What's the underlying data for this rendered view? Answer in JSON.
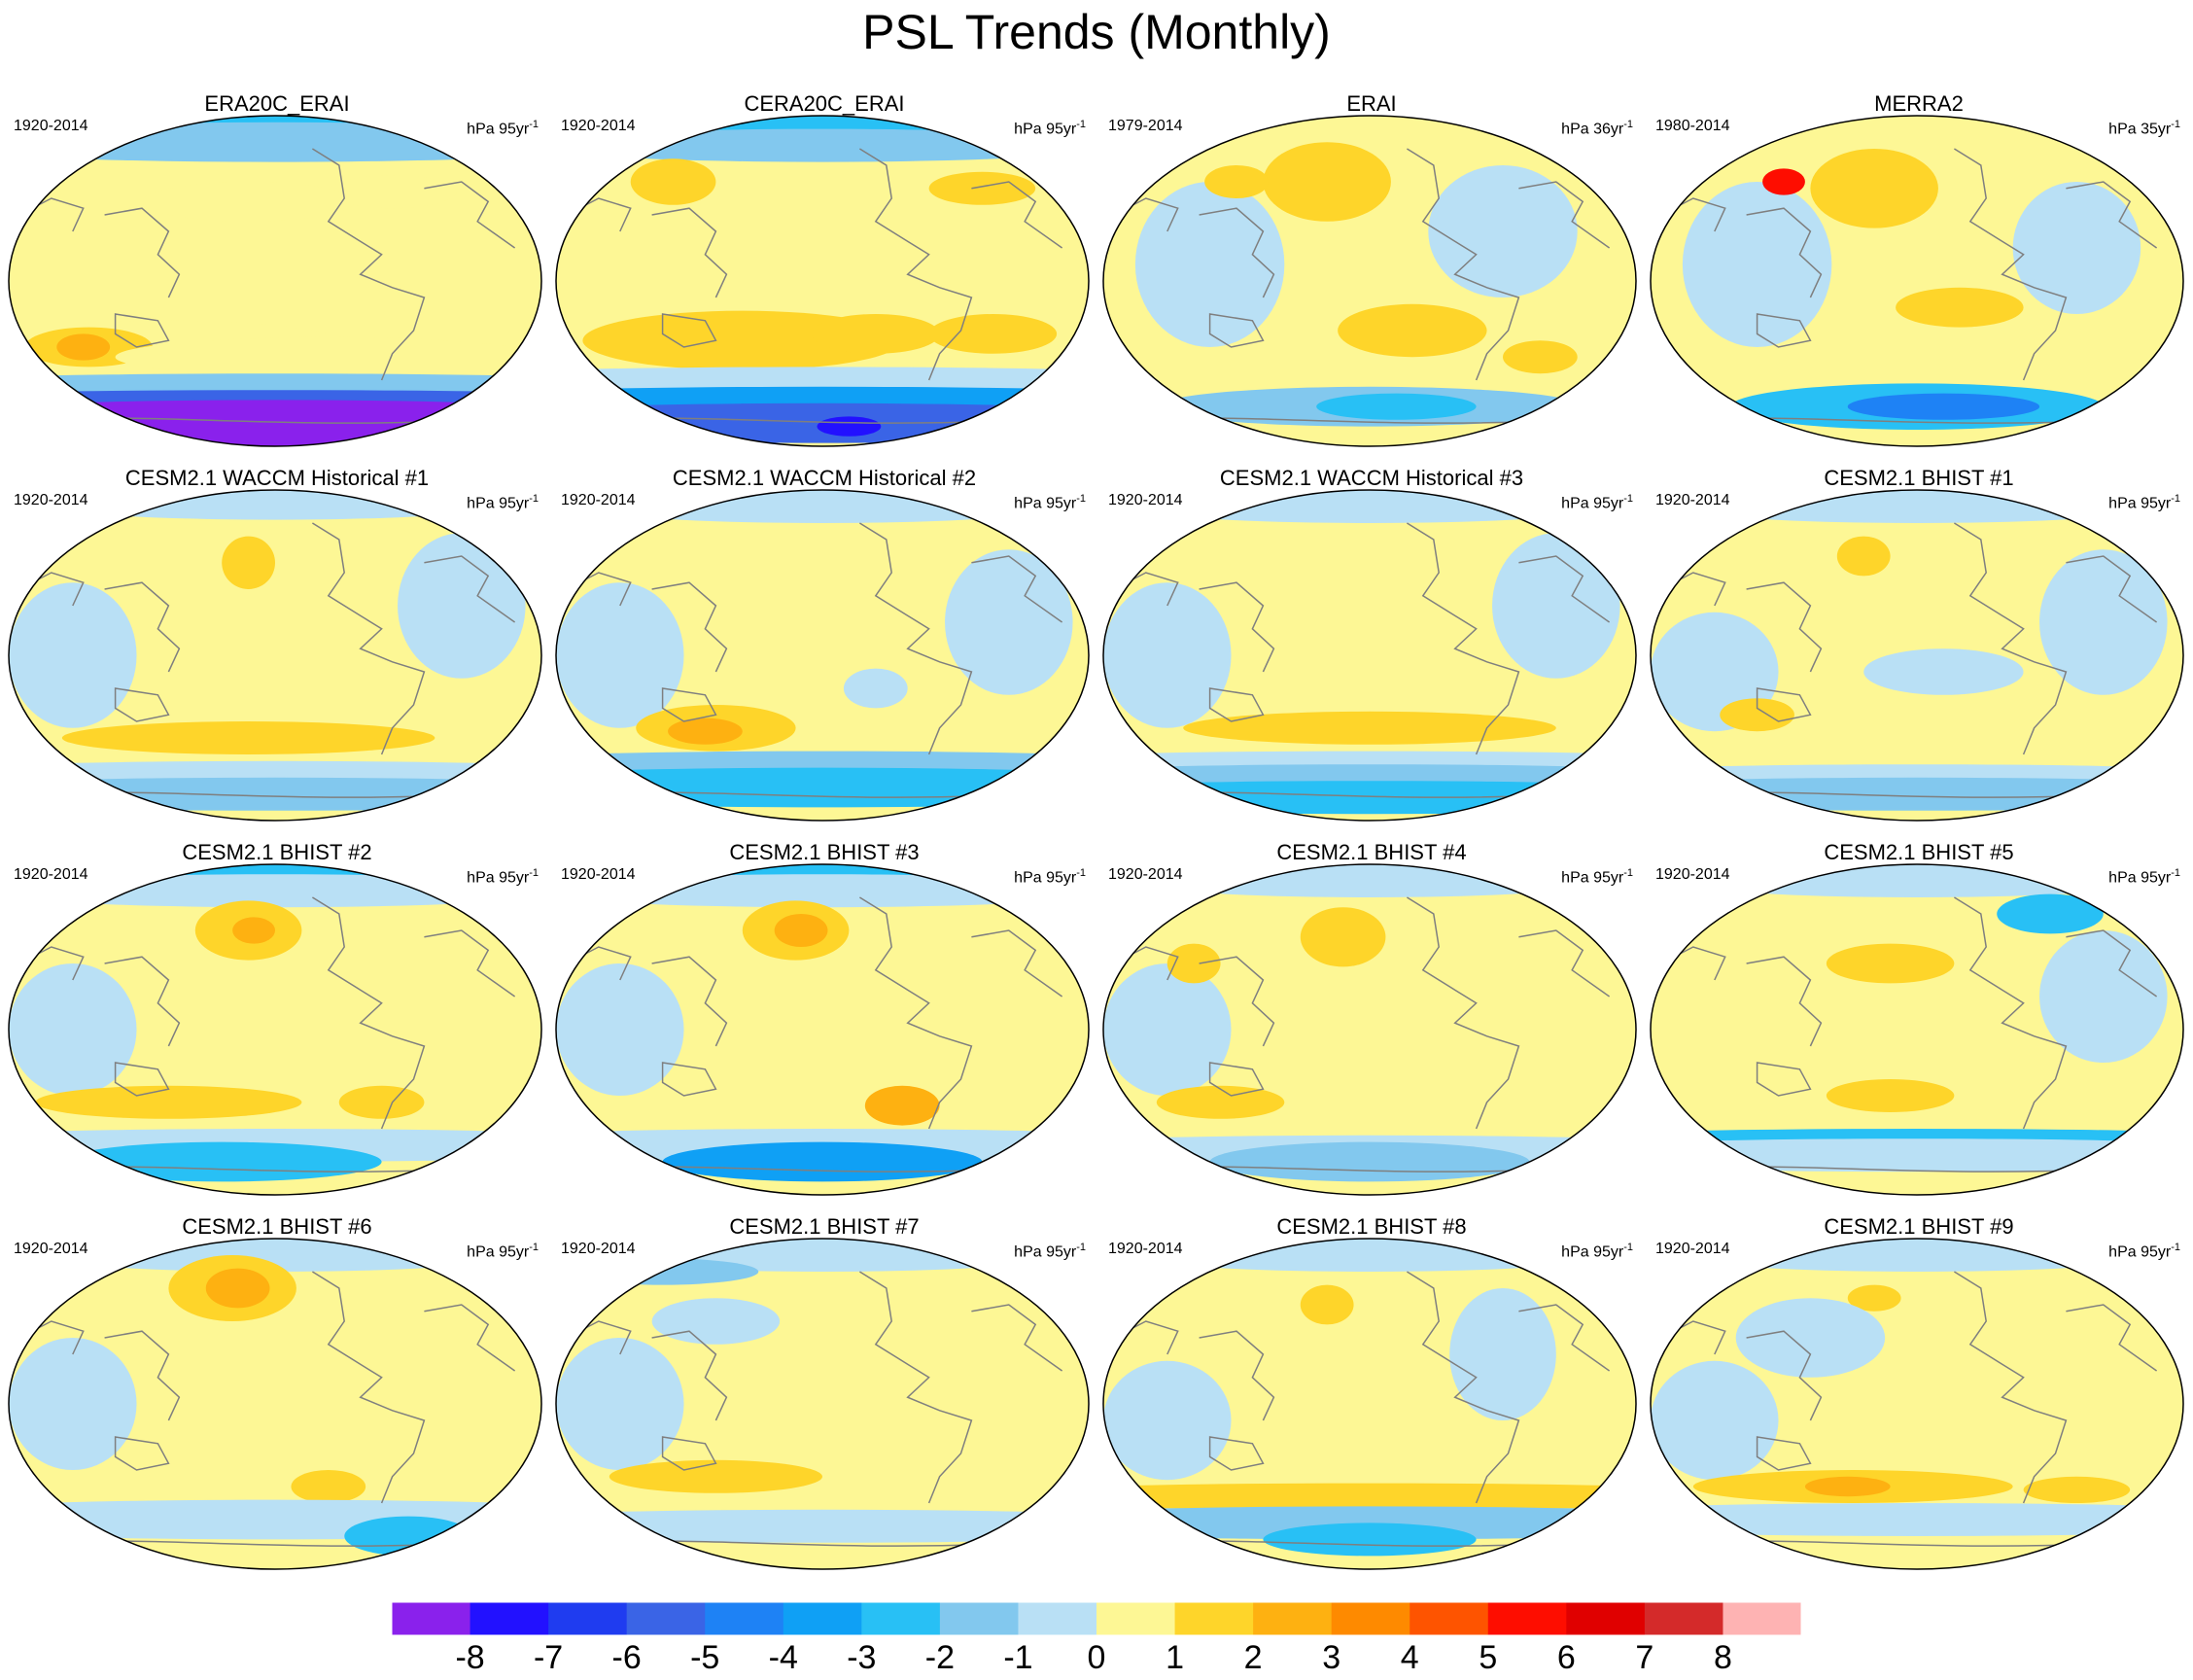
{
  "title": "PSL Trends (Monthly)",
  "colors": {
    "ocean_outline": "#000000",
    "coast": "#7f7f7f"
  },
  "chart_data": {
    "type": "heatmap",
    "variable": "PSL",
    "panels": [
      {
        "title": "ERA20C_ERAI",
        "period": "1920-2014",
        "units_base": "hPa 95yr",
        "units_exp": "-1"
      },
      {
        "title": "CERA20C_ERAI",
        "period": "1920-2014",
        "units_base": "hPa 95yr",
        "units_exp": "-1"
      },
      {
        "title": "ERAI",
        "period": "1979-2014",
        "units_base": "hPa 36yr",
        "units_exp": "-1"
      },
      {
        "title": "MERRA2",
        "period": "1980-2014",
        "units_base": "hPa 35yr",
        "units_exp": "-1"
      },
      {
        "title": "CESM2.1 WACCM Historical #1",
        "period": "1920-2014",
        "units_base": "hPa 95yr",
        "units_exp": "-1"
      },
      {
        "title": "CESM2.1 WACCM Historical #2",
        "period": "1920-2014",
        "units_base": "hPa 95yr",
        "units_exp": "-1"
      },
      {
        "title": "CESM2.1 WACCM Historical #3",
        "period": "1920-2014",
        "units_base": "hPa 95yr",
        "units_exp": "-1"
      },
      {
        "title": "CESM2.1 BHIST #1",
        "period": "1920-2014",
        "units_base": "hPa 95yr",
        "units_exp": "-1"
      },
      {
        "title": "CESM2.1 BHIST #2",
        "period": "1920-2014",
        "units_base": "hPa 95yr",
        "units_exp": "-1"
      },
      {
        "title": "CESM2.1 BHIST #3",
        "period": "1920-2014",
        "units_base": "hPa 95yr",
        "units_exp": "-1"
      },
      {
        "title": "CESM2.1 BHIST #4",
        "period": "1920-2014",
        "units_base": "hPa 95yr",
        "units_exp": "-1"
      },
      {
        "title": "CESM2.1 BHIST #5",
        "period": "1920-2014",
        "units_base": "hPa 95yr",
        "units_exp": "-1"
      },
      {
        "title": "CESM2.1 BHIST #6",
        "period": "1920-2014",
        "units_base": "hPa 95yr",
        "units_exp": "-1"
      },
      {
        "title": "CESM2.1 BHIST #7",
        "period": "1920-2014",
        "units_base": "hPa 95yr",
        "units_exp": "-1"
      },
      {
        "title": "CESM2.1 BHIST #8",
        "period": "1920-2014",
        "units_base": "hPa 95yr",
        "units_exp": "-1"
      },
      {
        "title": "CESM2.1 BHIST #9",
        "period": "1920-2014",
        "units_base": "hPa 95yr",
        "units_exp": "-1"
      }
    ],
    "colorbar": {
      "levels": [
        -8,
        -7,
        -6,
        -5,
        -4,
        -3,
        -2,
        -1,
        0,
        1,
        2,
        3,
        4,
        5,
        6,
        7,
        8
      ],
      "labels": [
        "-8",
        "-7",
        "-6",
        "-5",
        "-4",
        "-3",
        "-2",
        "-1",
        "0",
        "1",
        "2",
        "3",
        "4",
        "5",
        "6",
        "7",
        "8"
      ],
      "colors": [
        "#8a21ec",
        "#2211ff",
        "#1f3cf0",
        "#3a64e6",
        "#1e82f5",
        "#0fa0f5",
        "#28c0f5",
        "#82c8ee",
        "#b9e0f5",
        "#fdf795",
        "#fed52a",
        "#feb111",
        "#fe8a00",
        "#fe5400",
        "#fe0d00",
        "#e00000",
        "#d42a2a",
        "#feb3b3"
      ]
    }
  }
}
